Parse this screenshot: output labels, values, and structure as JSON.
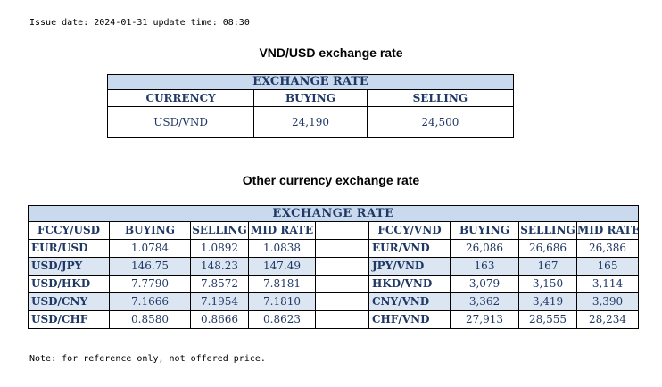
{
  "issue_line": "Issue date: 2024-01-31 update time: 08:30",
  "usd_section": {
    "title": "VND/USD exchange rate",
    "header": "EXCHANGE RATE",
    "columns": [
      "CURRENCY",
      "BUYING",
      "SELLING"
    ],
    "row": [
      "USD/VND",
      "24,190",
      "24,500"
    ]
  },
  "other_section": {
    "title": "Other currency exchange rate",
    "header": "EXCHANGE  RATE",
    "left_columns": [
      "FCCY/USD",
      "BUYING",
      "SELLING",
      "MID RATE"
    ],
    "right_columns": [
      "FCCY/VND",
      "BUYING",
      "SELLING",
      "MID RATE"
    ],
    "rows": [
      {
        "l": [
          "EUR/USD",
          "1.0784",
          "1.0892",
          "1.0838"
        ],
        "r": [
          "EUR/VND",
          "26,086",
          "26,686",
          "26,386"
        ]
      },
      {
        "l": [
          "USD/JPY",
          "146.75",
          "148.23",
          "147.49"
        ],
        "r": [
          "JPY/VND",
          "163",
          "167",
          "165"
        ]
      },
      {
        "l": [
          "USD/HKD",
          "7.7790",
          "7.8572",
          "7.8181"
        ],
        "r": [
          "HKD/VND",
          "3,079",
          "3,150",
          "3,114"
        ]
      },
      {
        "l": [
          "USD/CNY",
          "7.1666",
          "7.1954",
          "7.1810"
        ],
        "r": [
          "CNY/VND",
          "3,362",
          "3,419",
          "3,390"
        ]
      },
      {
        "l": [
          "USD/CHF",
          "0.8580",
          "0.8666",
          "0.8623"
        ],
        "r": [
          "CHF/VND",
          "27,913",
          "28,555",
          "28,234"
        ]
      }
    ]
  },
  "note": "Note: for reference only, not offered price.",
  "colors": {
    "header_fill": "#c9d9ee",
    "alt_row_fill": "#dce6f3",
    "text": "#1f3864"
  }
}
